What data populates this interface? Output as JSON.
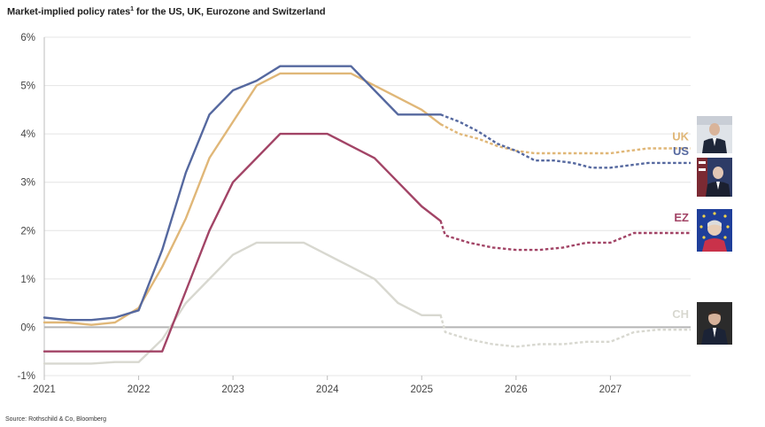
{
  "chart_data": {
    "type": "line",
    "title": "Market-implied policy rates",
    "title_sup": "1",
    "title_rest": " for the US, UK, Eurozone and Switzerland",
    "source": "Source: Rothschild & Co, Bloomberg",
    "xlim": [
      2021.0,
      2027.85
    ],
    "ylim": [
      -1,
      6
    ],
    "yticks": [
      -1,
      0,
      1,
      2,
      3,
      4,
      5,
      6
    ],
    "ytick_labels": [
      "-1%",
      "0%",
      "1%",
      "2%",
      "3%",
      "4%",
      "5%",
      "6%"
    ],
    "xticks": [
      2021,
      2022,
      2023,
      2024,
      2025,
      2026,
      2027
    ],
    "xtick_labels": [
      "2021",
      "2022",
      "2023",
      "2024",
      "2025",
      "2026",
      "2027"
    ],
    "grid": true,
    "forecast_start": 2025.2,
    "series": [
      {
        "name": "US",
        "color": "#55689f",
        "x": [
          2021.0,
          2021.25,
          2021.5,
          2021.75,
          2022.0,
          2022.25,
          2022.5,
          2022.75,
          2023.0,
          2023.25,
          2023.5,
          2023.75,
          2024.0,
          2024.25,
          2024.5,
          2024.75,
          2025.0,
          2025.2,
          2025.4,
          2025.6,
          2025.8,
          2026.0,
          2026.2,
          2026.4,
          2026.6,
          2026.8,
          2027.0,
          2027.2,
          2027.4,
          2027.6,
          2027.85
        ],
        "y": [
          0.2,
          0.15,
          0.15,
          0.2,
          0.35,
          1.6,
          3.2,
          4.4,
          4.9,
          5.1,
          5.4,
          5.4,
          5.4,
          5.4,
          4.9,
          4.4,
          4.4,
          4.4,
          4.25,
          4.05,
          3.8,
          3.65,
          3.45,
          3.45,
          3.4,
          3.3,
          3.3,
          3.35,
          3.4,
          3.4,
          3.4
        ]
      },
      {
        "name": "UK",
        "color": "#e0b778",
        "x": [
          2021.0,
          2021.25,
          2021.5,
          2021.75,
          2022.0,
          2022.25,
          2022.5,
          2022.75,
          2023.0,
          2023.25,
          2023.5,
          2023.75,
          2024.0,
          2024.25,
          2024.5,
          2024.75,
          2025.0,
          2025.2,
          2025.4,
          2025.6,
          2025.8,
          2026.0,
          2026.2,
          2026.4,
          2026.6,
          2026.8,
          2027.0,
          2027.2,
          2027.4,
          2027.6,
          2027.85
        ],
        "y": [
          0.1,
          0.1,
          0.05,
          0.1,
          0.4,
          1.25,
          2.25,
          3.5,
          4.25,
          5.0,
          5.25,
          5.25,
          5.25,
          5.25,
          5.0,
          4.75,
          4.5,
          4.2,
          4.0,
          3.9,
          3.75,
          3.65,
          3.6,
          3.6,
          3.6,
          3.6,
          3.6,
          3.65,
          3.7,
          3.7,
          3.7
        ]
      },
      {
        "name": "EZ",
        "color": "#a24466",
        "x": [
          2021.0,
          2021.25,
          2021.5,
          2021.75,
          2022.0,
          2022.25,
          2022.5,
          2022.75,
          2023.0,
          2023.25,
          2023.5,
          2023.75,
          2024.0,
          2024.25,
          2024.5,
          2024.75,
          2025.0,
          2025.2,
          2025.25,
          2025.5,
          2025.75,
          2026.0,
          2026.25,
          2026.5,
          2026.75,
          2027.0,
          2027.25,
          2027.5,
          2027.85
        ],
        "y": [
          -0.5,
          -0.5,
          -0.5,
          -0.5,
          -0.5,
          -0.5,
          0.75,
          2.0,
          3.0,
          3.5,
          4.0,
          4.0,
          4.0,
          3.75,
          3.5,
          3.0,
          2.5,
          2.2,
          1.9,
          1.75,
          1.65,
          1.6,
          1.6,
          1.65,
          1.75,
          1.75,
          1.95,
          1.95,
          1.95
        ]
      },
      {
        "name": "CH",
        "color": "#d8d8d0",
        "x": [
          2021.0,
          2021.25,
          2021.5,
          2021.75,
          2022.0,
          2022.25,
          2022.5,
          2022.75,
          2023.0,
          2023.25,
          2023.5,
          2023.75,
          2024.0,
          2024.25,
          2024.5,
          2024.75,
          2025.0,
          2025.2,
          2025.25,
          2025.5,
          2025.75,
          2026.0,
          2026.25,
          2026.5,
          2026.75,
          2027.0,
          2027.25,
          2027.5,
          2027.85
        ],
        "y": [
          -0.75,
          -0.75,
          -0.75,
          -0.72,
          -0.72,
          -0.25,
          0.5,
          1.0,
          1.5,
          1.75,
          1.75,
          1.75,
          1.5,
          1.25,
          1.0,
          0.5,
          0.25,
          0.25,
          -0.1,
          -0.25,
          -0.35,
          -0.4,
          -0.35,
          -0.35,
          -0.3,
          -0.3,
          -0.1,
          -0.05,
          -0.05
        ]
      }
    ]
  }
}
